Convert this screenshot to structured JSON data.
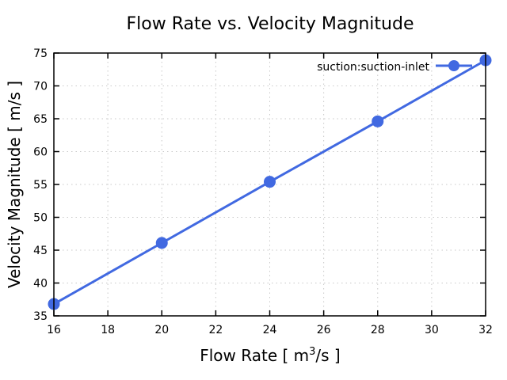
{
  "chart_data": {
    "type": "line",
    "title": "Flow Rate vs. Velocity Magnitude",
    "xlabel_main": "Flow Rate [ m",
    "xlabel_sup": "3",
    "xlabel_tail": "/s ]",
    "xlabel": "Flow Rate [ m^3/s ]",
    "ylabel": "Velocity Magnitude [ m/s ]",
    "xlim": [
      16,
      32
    ],
    "ylim": [
      35,
      75
    ],
    "xticks": [
      16,
      18,
      20,
      22,
      24,
      26,
      28,
      30,
      32
    ],
    "yticks": [
      35,
      40,
      45,
      50,
      55,
      60,
      65,
      70,
      75
    ],
    "grid": true,
    "legend_position": "top-right",
    "series": [
      {
        "name": "suction:suction-inlet",
        "color": "#4169e1",
        "x": [
          16,
          20,
          24,
          28,
          32
        ],
        "y": [
          36.8,
          46.1,
          55.4,
          64.6,
          73.9
        ]
      }
    ]
  }
}
